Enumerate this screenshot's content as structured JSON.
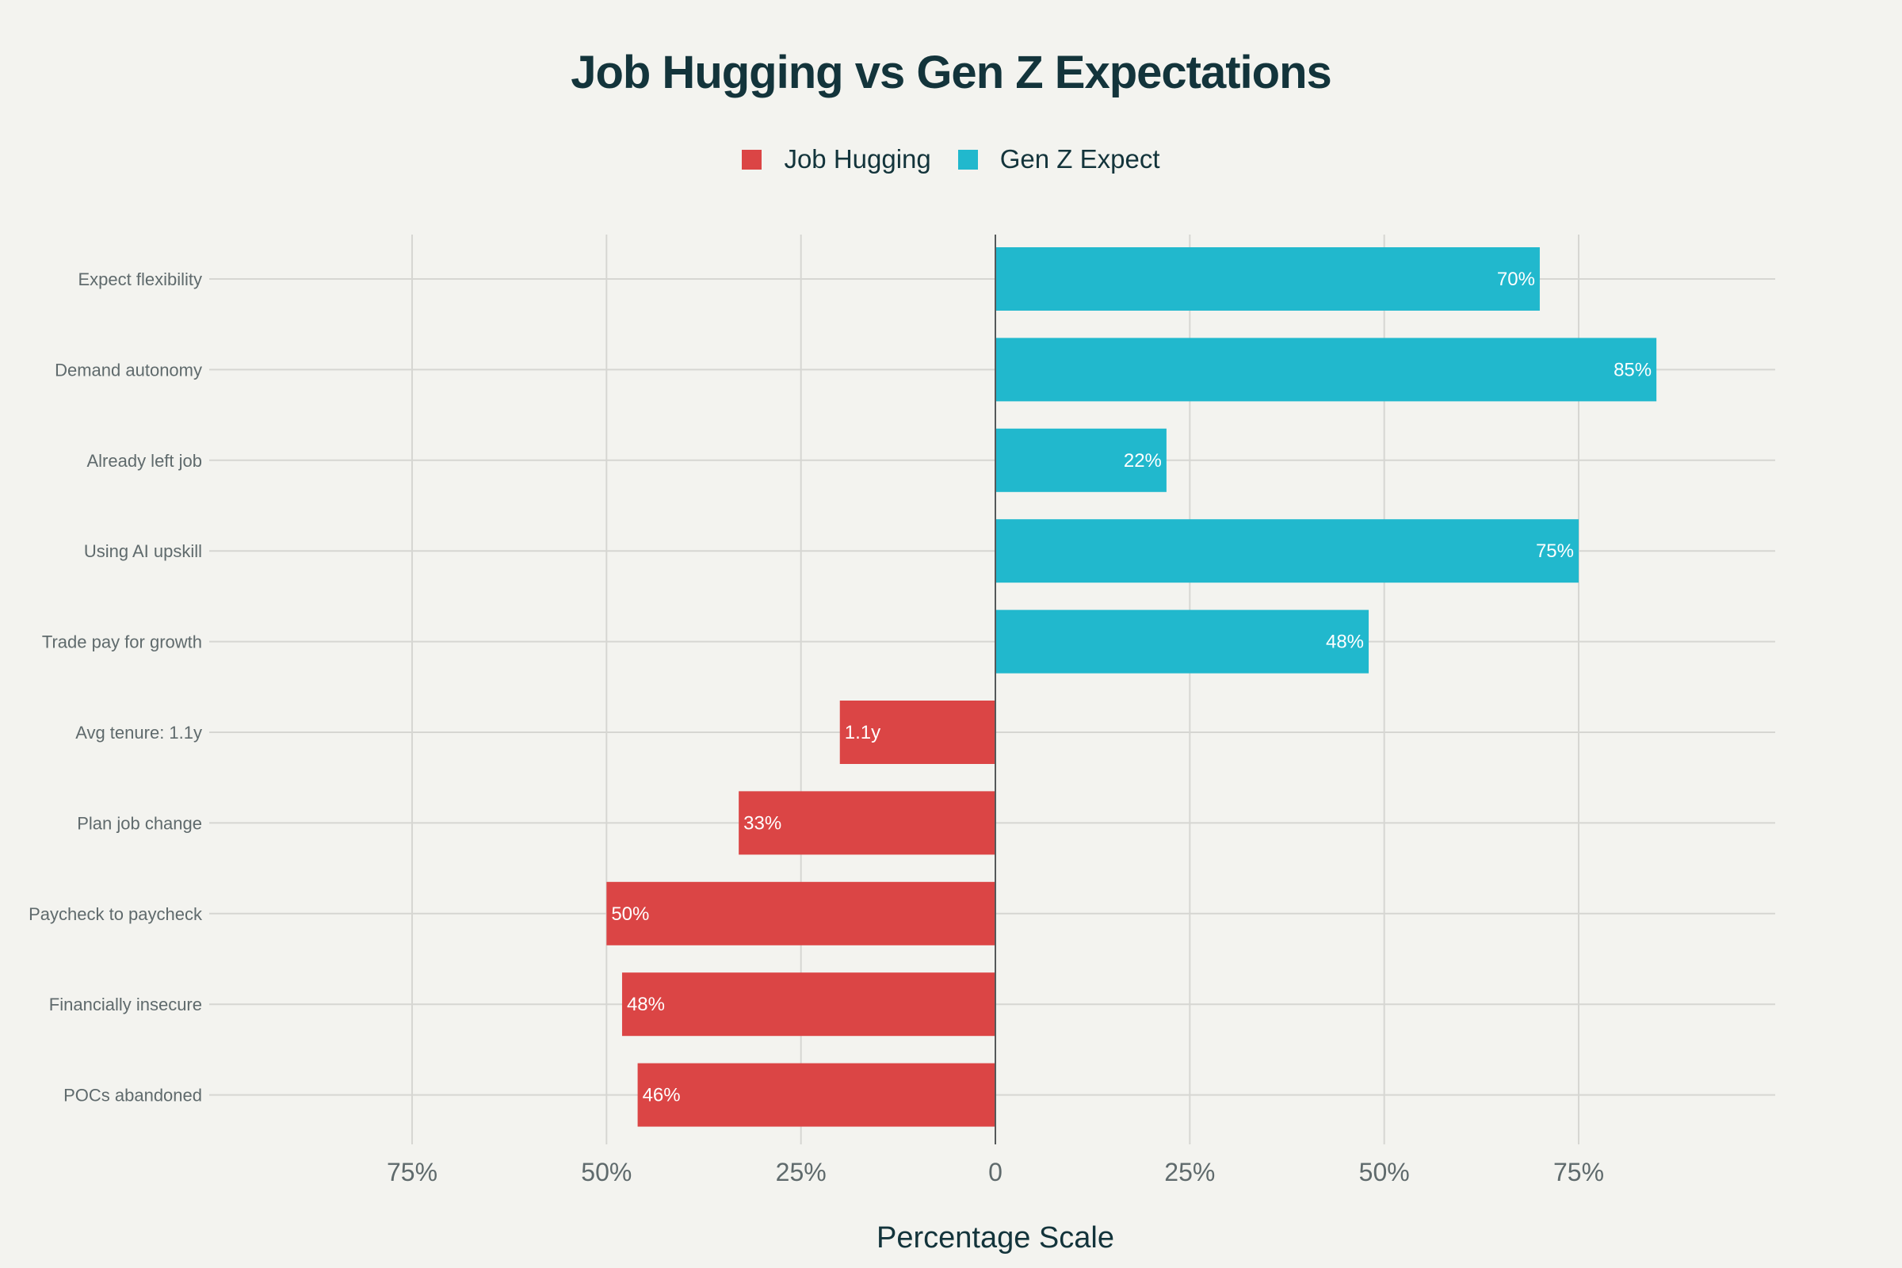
{
  "chart_data": {
    "type": "bar",
    "orientation": "horizontal",
    "title": "Job Hugging vs Gen Z Expectations",
    "xlabel": "Percentage Scale",
    "ylabel": "",
    "xlim": [
      -100,
      100
    ],
    "x_ticks": [
      {
        "value": -75,
        "label": "75%"
      },
      {
        "value": -50,
        "label": "50%"
      },
      {
        "value": -25,
        "label": "25%"
      },
      {
        "value": 0,
        "label": "0"
      },
      {
        "value": 25,
        "label": "25%"
      },
      {
        "value": 50,
        "label": "50%"
      },
      {
        "value": 75,
        "label": "75%"
      }
    ],
    "legend_position": "top-center",
    "grid": true,
    "series": [
      {
        "name": "Job Hugging",
        "color": "#db4545"
      },
      {
        "name": "Gen Z Expect",
        "color": "#21b8cd"
      }
    ],
    "bars": [
      {
        "category": "Expect flexibility",
        "series": "Gen Z Expect",
        "value": 70,
        "label": "70%"
      },
      {
        "category": "Demand autonomy",
        "series": "Gen Z Expect",
        "value": 85,
        "label": "85%"
      },
      {
        "category": "Already left job",
        "series": "Gen Z Expect",
        "value": 22,
        "label": "22%"
      },
      {
        "category": "Using AI upskill",
        "series": "Gen Z Expect",
        "value": 75,
        "label": "75%"
      },
      {
        "category": "Trade pay for growth",
        "series": "Gen Z Expect",
        "value": 48,
        "label": "48%"
      },
      {
        "category": "Avg tenure: 1.1y",
        "series": "Job Hugging",
        "value": -20,
        "label": "1.1y"
      },
      {
        "category": "Plan job change",
        "series": "Job Hugging",
        "value": -33,
        "label": "33%"
      },
      {
        "category": "Paycheck to paycheck",
        "series": "Job Hugging",
        "value": -50,
        "label": "50%"
      },
      {
        "category": "Financially insecure",
        "series": "Job Hugging",
        "value": -48,
        "label": "48%"
      },
      {
        "category": "POCs abandoned",
        "series": "Job Hugging",
        "value": -46,
        "label": "46%"
      }
    ]
  }
}
